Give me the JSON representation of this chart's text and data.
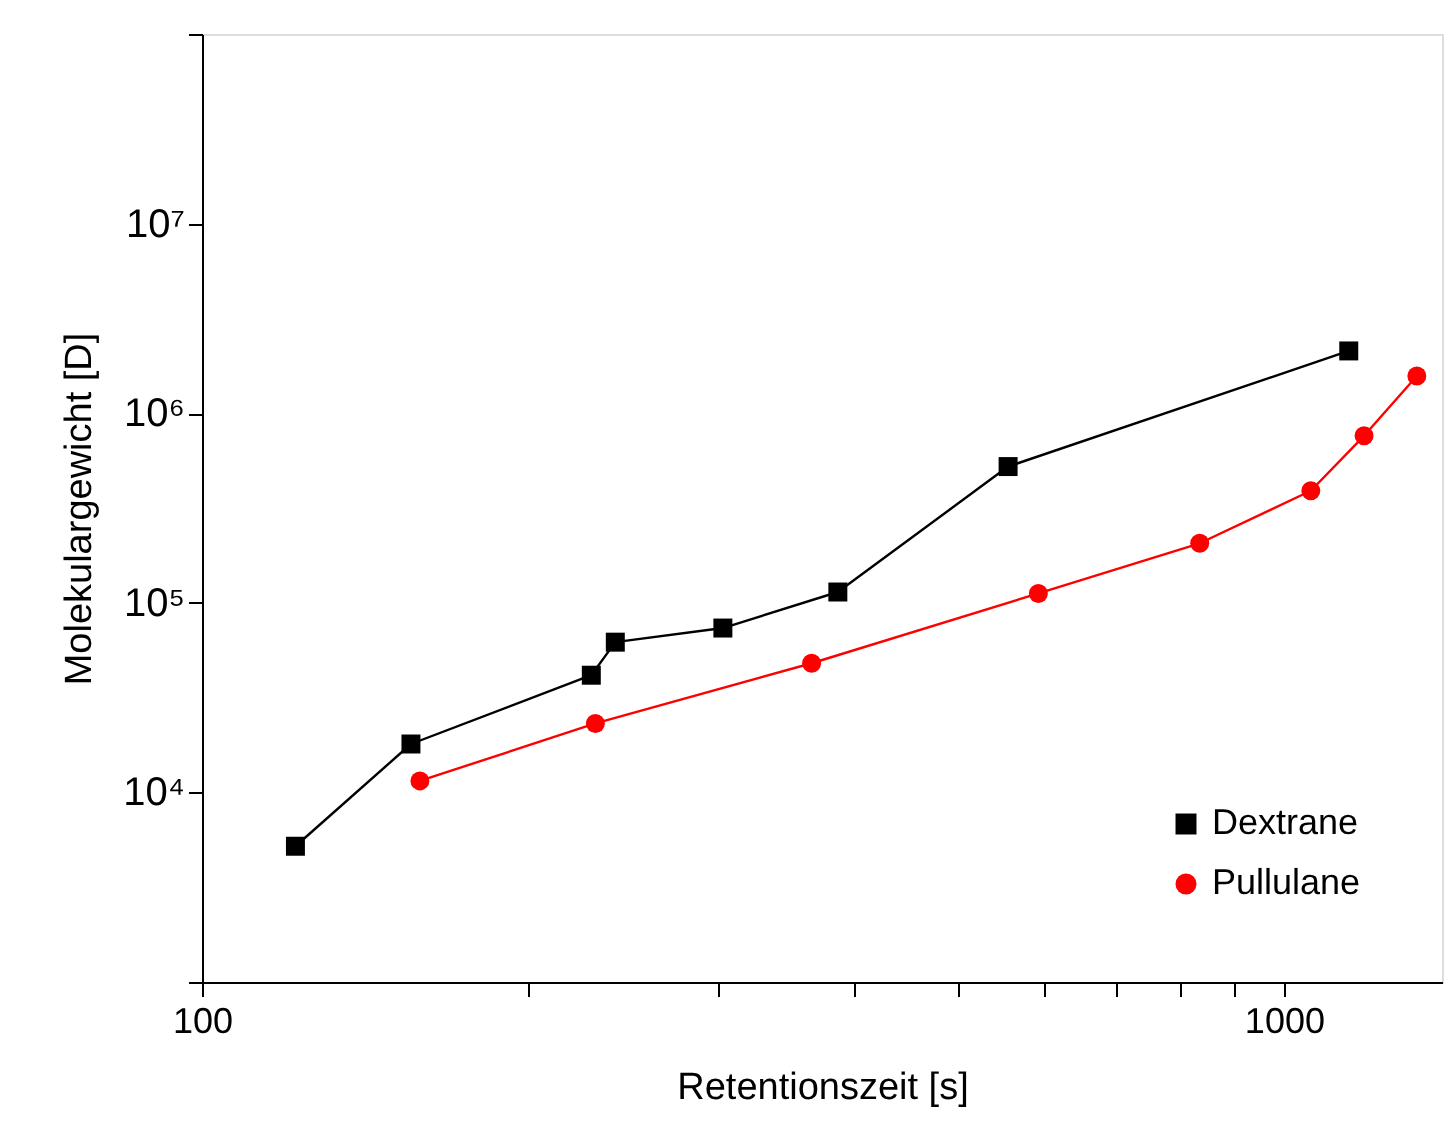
{
  "chart_data": {
    "type": "line",
    "xlabel": "Retentionszeit [s]",
    "ylabel": "Molekulargewicht [D]",
    "log": "xy",
    "xlim": [
      100,
      1400
    ],
    "ylim": [
      1000,
      100000000
    ],
    "xticks": [
      100,
      {
        "value": 200,
        "label": null
      },
      {
        "value": 300,
        "label": null
      },
      {
        "value": 400,
        "label": null
      },
      {
        "value": 500,
        "label": null
      },
      {
        "value": 600,
        "label": null
      },
      {
        "value": 700,
        "label": null
      },
      {
        "value": 800,
        "label": null
      },
      {
        "value": 900,
        "label": null
      },
      1000
    ],
    "yticks": [
      {
        "value": 1000,
        "label": null
      },
      {
        "value": 10000,
        "label": "10⁴"
      },
      {
        "value": 100000,
        "label": "10⁵"
      },
      {
        "value": 1000000,
        "label": "10⁶"
      },
      {
        "value": 10000000,
        "label": "10⁷"
      },
      {
        "value": 100000000,
        "label": null
      }
    ],
    "legend": "bottom right",
    "series": [
      {
        "name": "Dextrane",
        "color": "#000000",
        "marker": "square",
        "x": [
          122,
          156,
          229,
          241,
          303,
          387,
          556,
          1148
        ],
        "values": [
          5200,
          18000,
          41500,
          62000,
          73600,
          114000,
          523000,
          2130000
        ]
      },
      {
        "name": "Pullulane",
        "color": "#ff0000",
        "marker": "circle",
        "x": [
          159,
          231,
          366,
          593,
          836,
          1059,
          1186,
          1327
        ],
        "values": [
          11500,
          23100,
          48000,
          112000,
          206000,
          390000,
          760000,
          1570000
        ]
      }
    ]
  }
}
